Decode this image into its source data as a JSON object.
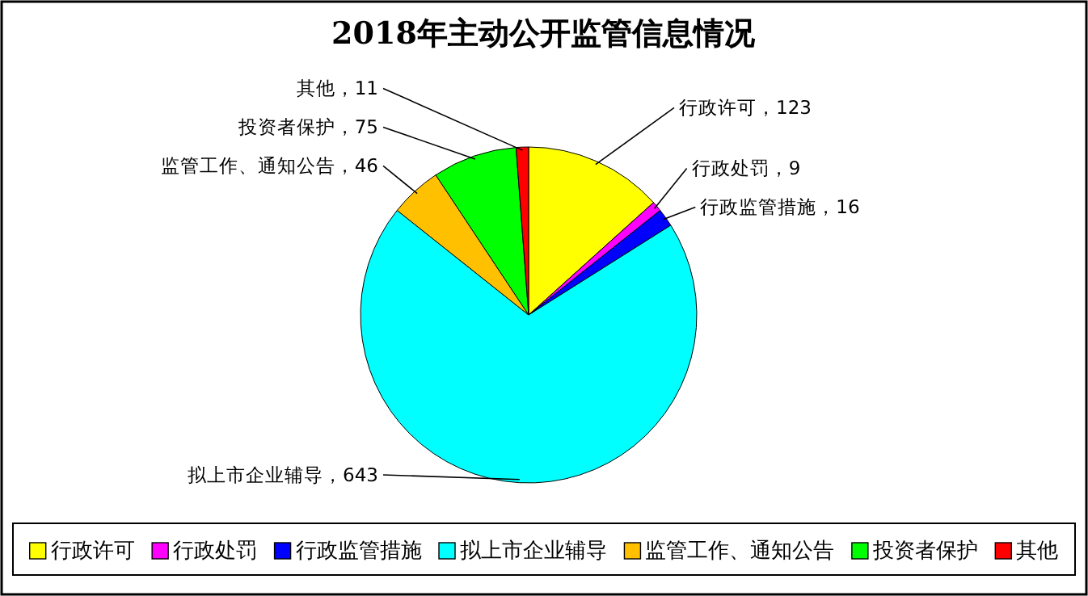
{
  "chart_data": {
    "type": "pie",
    "title": "2018年主动公开监管信息情况",
    "categories": [
      "行政许可",
      "行政处罚",
      "行政监管措施",
      "拟上市企业辅导",
      "监管工作、通知公告",
      "投资者保护",
      "其他"
    ],
    "values": [
      123,
      9,
      16,
      643,
      46,
      75,
      11
    ],
    "colors": [
      "#ffff00",
      "#ff00ff",
      "#0000ff",
      "#00ffff",
      "#ffc000",
      "#00ff00",
      "#ff0000"
    ],
    "value_labels": [
      "行政许可，123",
      "行政处罚，9",
      "行政监管措施，16",
      "拟上市企业辅导，643",
      "监管工作、通知公告，46",
      "投资者保护，75",
      "其他，11"
    ],
    "legend": "bottom"
  }
}
